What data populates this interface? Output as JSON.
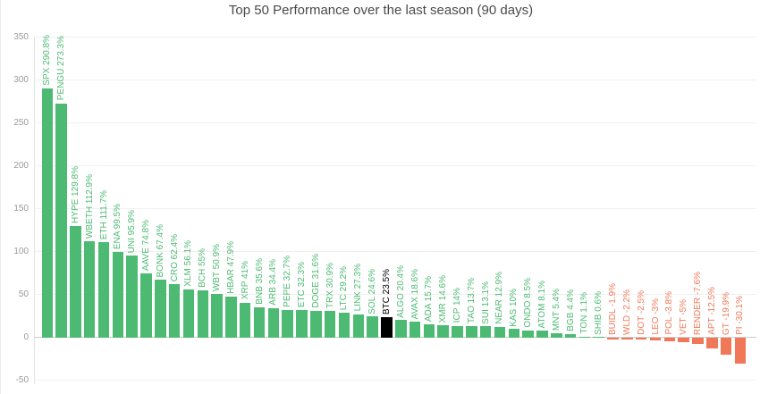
{
  "chart": {
    "title": "Top 50 Performance over the last season (90 days)"
  },
  "chart_data": {
    "type": "bar",
    "title": "Top 50 Performance over the last season (90 days)",
    "xlabel": "",
    "ylabel": "",
    "ylim": [
      -50,
      350
    ],
    "yticks": [
      350,
      300,
      250,
      200,
      150,
      100,
      50,
      0,
      -50
    ],
    "grid": true,
    "legend": false,
    "value_suffix": "%",
    "highlight_symbol": "BTC",
    "colors": {
      "positive": "#4dba73",
      "negative": "#f07858",
      "highlight": "#000000",
      "title": "#4a4a4a",
      "axis_label": "#9a9a9a",
      "gridline": "#f0f0f0",
      "zero_line": "#cccccc",
      "axis_line": "#e3e3e3"
    },
    "bars": [
      {
        "symbol": "SPX",
        "label": "SPX 290.8%",
        "value": 290.8
      },
      {
        "symbol": "PENGU",
        "label": "PENGU 273.3%",
        "value": 273.3
      },
      {
        "symbol": "HYPE",
        "label": "HYPE 129.8%",
        "value": 129.8
      },
      {
        "symbol": "WBETH",
        "label": "WBETH 112.9%",
        "value": 112.9
      },
      {
        "symbol": "ETH",
        "label": "ETH 111.7%",
        "value": 111.7
      },
      {
        "symbol": "ENA",
        "label": "ENA 99.5%",
        "value": 99.5
      },
      {
        "symbol": "UNI",
        "label": "UNI 95.9%",
        "value": 95.9
      },
      {
        "symbol": "AAVE",
        "label": "AAVE 74.8%",
        "value": 74.8
      },
      {
        "symbol": "BONK",
        "label": "BONK 67.4%",
        "value": 67.4
      },
      {
        "symbol": "CRO",
        "label": "CRO 62.4%",
        "value": 62.4
      },
      {
        "symbol": "XLM",
        "label": "XLM 56.1%",
        "value": 56.1
      },
      {
        "symbol": "BCH",
        "label": "BCH 55%",
        "value": 55
      },
      {
        "symbol": "WBT",
        "label": "WBT 50.9%",
        "value": 50.9
      },
      {
        "symbol": "HBAR",
        "label": "HBAR 47.9%",
        "value": 47.9
      },
      {
        "symbol": "XRP",
        "label": "XRP 41%",
        "value": 41
      },
      {
        "symbol": "BNB",
        "label": "BNB 35.6%",
        "value": 35.6
      },
      {
        "symbol": "ARB",
        "label": "ARB 34.4%",
        "value": 34.4
      },
      {
        "symbol": "PEPE",
        "label": "PEPE 32.7%",
        "value": 32.7
      },
      {
        "symbol": "ETC",
        "label": "ETC 32.3%",
        "value": 32.3
      },
      {
        "symbol": "DOGE",
        "label": "DOGE 31.6%",
        "value": 31.6
      },
      {
        "symbol": "TRX",
        "label": "TRX 30.9%",
        "value": 30.9
      },
      {
        "symbol": "LTC",
        "label": "LTC 29.2%",
        "value": 29.2
      },
      {
        "symbol": "LINK",
        "label": "LINK 27.3%",
        "value": 27.3
      },
      {
        "symbol": "SOL",
        "label": "SOL 24.6%",
        "value": 24.6
      },
      {
        "symbol": "BTC",
        "label": "BTC 23.5%",
        "value": 23.5
      },
      {
        "symbol": "ALGO",
        "label": "ALGO 20.4%",
        "value": 20.4
      },
      {
        "symbol": "AVAX",
        "label": "AVAX 18.6%",
        "value": 18.6
      },
      {
        "symbol": "ADA",
        "label": "ADA 15.7%",
        "value": 15.7
      },
      {
        "symbol": "XMR",
        "label": "XMR 14.6%",
        "value": 14.6
      },
      {
        "symbol": "ICP",
        "label": "ICP 14%",
        "value": 14
      },
      {
        "symbol": "TAO",
        "label": "TAO 13.7%",
        "value": 13.7
      },
      {
        "symbol": "SUI",
        "label": "SUI 13.1%",
        "value": 13.1
      },
      {
        "symbol": "NEAR",
        "label": "NEAR 12.9%",
        "value": 12.9
      },
      {
        "symbol": "KAS",
        "label": "KAS 10%",
        "value": 10
      },
      {
        "symbol": "ONDO",
        "label": "ONDO 8.5%",
        "value": 8.5
      },
      {
        "symbol": "ATOM",
        "label": "ATOM 8.1%",
        "value": 8.1
      },
      {
        "symbol": "MNT",
        "label": "MNT 5.4%",
        "value": 5.4
      },
      {
        "symbol": "BGB",
        "label": "BGB 4.4%",
        "value": 4.4
      },
      {
        "symbol": "TON",
        "label": "TON 1.1%",
        "value": 1.1
      },
      {
        "symbol": "SHIB",
        "label": "SHIB 0.6%",
        "value": 0.6
      },
      {
        "symbol": "BUIDL",
        "label": "BUIDL -1.9%",
        "value": -1.9
      },
      {
        "symbol": "WLD",
        "label": "WLD -2.2%",
        "value": -2.2
      },
      {
        "symbol": "DOT",
        "label": "DOT -2.5%",
        "value": -2.5
      },
      {
        "symbol": "LEO",
        "label": "LEO -3%",
        "value": -3
      },
      {
        "symbol": "POL",
        "label": "POL -3.8%",
        "value": -3.8
      },
      {
        "symbol": "VET",
        "label": "VET -5%",
        "value": -5
      },
      {
        "symbol": "RENDER",
        "label": "RENDER -7.6%",
        "value": -7.6
      },
      {
        "symbol": "APT",
        "label": "APT -12.5%",
        "value": -12.5
      },
      {
        "symbol": "GT",
        "label": "GT -19.9%",
        "value": -19.9
      },
      {
        "symbol": "PI",
        "label": "PI -30.1%",
        "value": -30.1
      }
    ]
  }
}
